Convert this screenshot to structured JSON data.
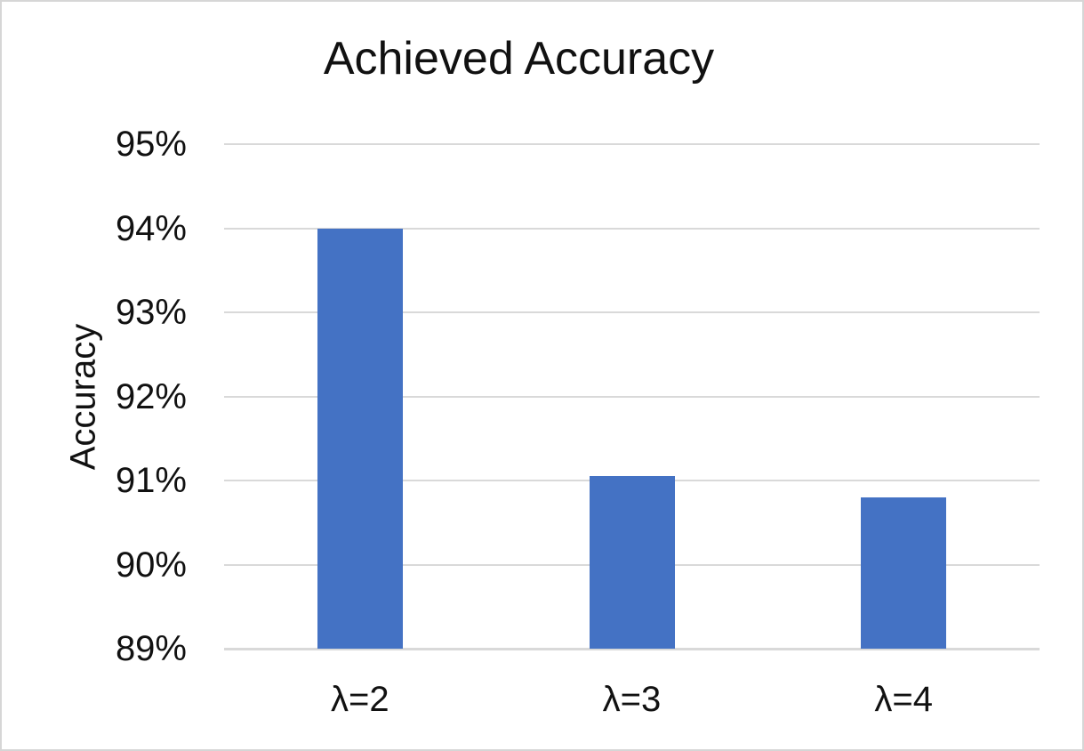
{
  "chart_data": {
    "type": "bar",
    "title": "Achieved Accuracy",
    "xlabel": "",
    "ylabel": "Accuracy",
    "categories": [
      "λ=2",
      "λ=3",
      "λ=4"
    ],
    "values": [
      94,
      91.05,
      90.8
    ],
    "value_unit": "%",
    "ylim": [
      89,
      95
    ],
    "ytick_step": 1,
    "ytick_labels": [
      "95%",
      "94%",
      "93%",
      "92%",
      "91%",
      "90%",
      "89%"
    ],
    "grid": "horizontal",
    "legend": "none",
    "colors": {
      "bar": "#4472C4",
      "gridline": "#D9D9D9",
      "axis_line": "#D9D9D9",
      "text": "#111111",
      "background": "#FFFFFF",
      "page_border": "#D6D6D6"
    }
  }
}
